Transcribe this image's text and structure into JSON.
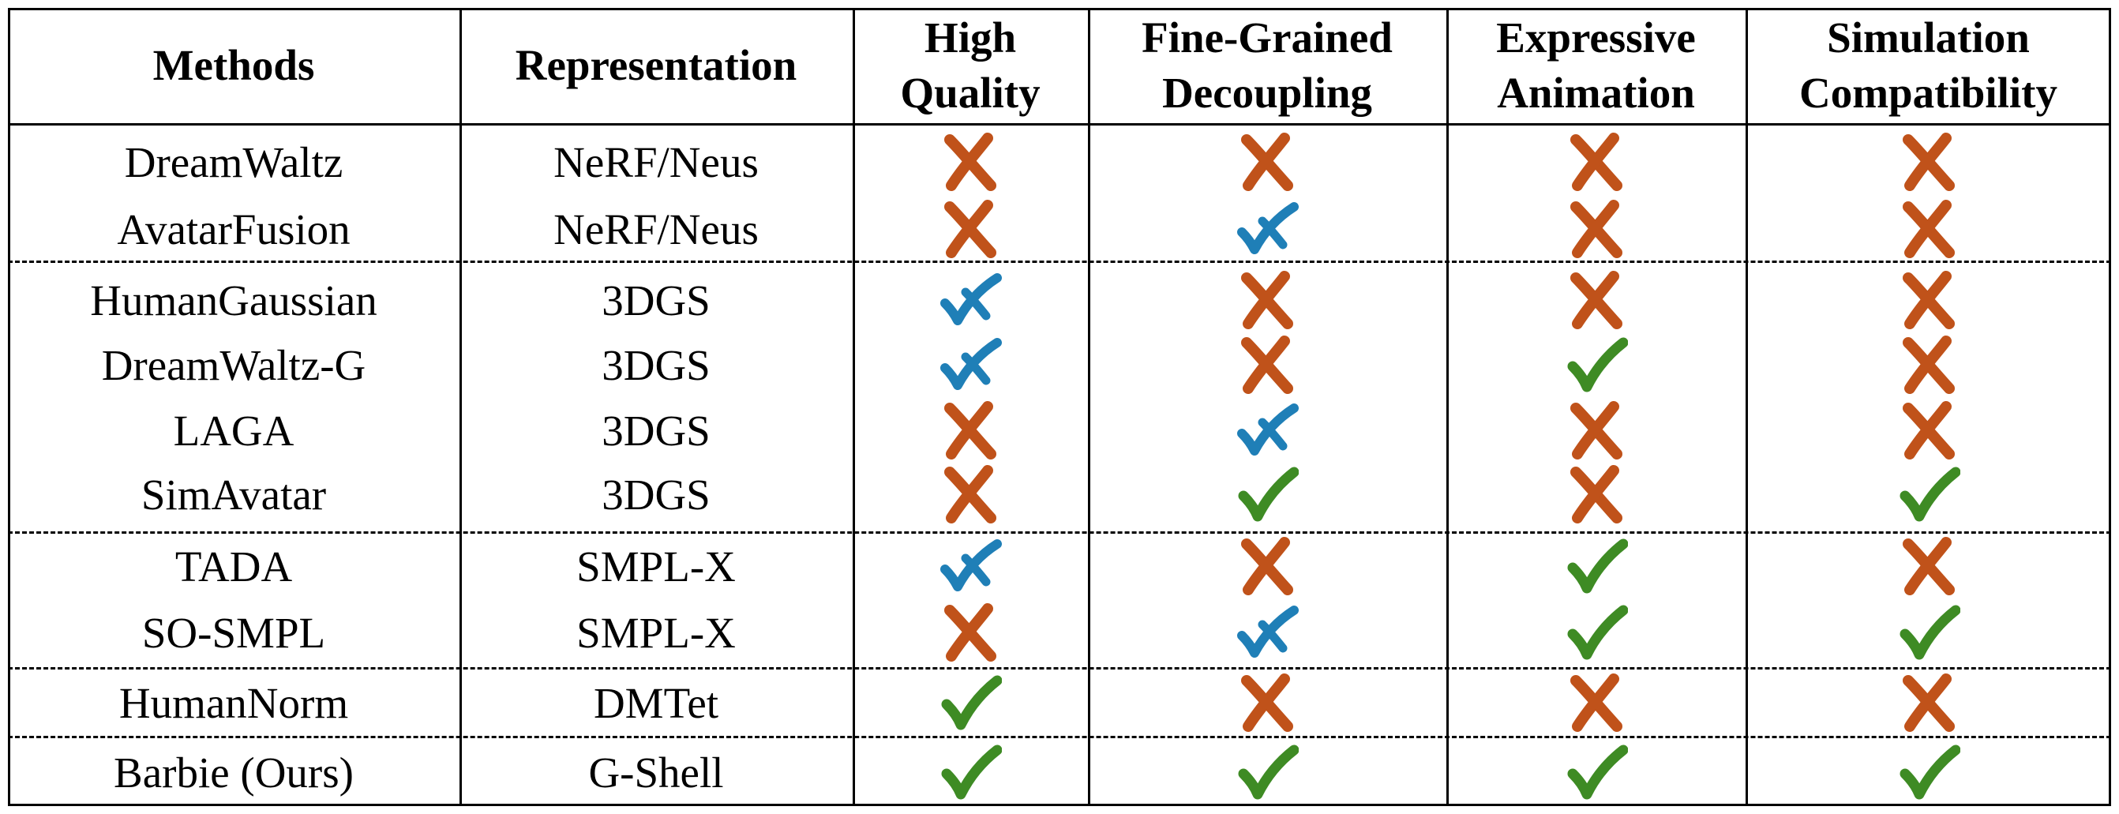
{
  "header": {
    "methods": "Methods",
    "representation": "Representation",
    "high_quality": "High Quality",
    "fine_grained": "Fine-Grained Decoupling",
    "expressive": "Expressive Animation",
    "simulation": "Simulation Compatibility"
  },
  "colors": {
    "cross": "#c0521a",
    "partial": "#1f7fb7",
    "check": "#3e8b24"
  },
  "marks_legend": {
    "cross": "cross-icon",
    "partial": "partial-check-icon",
    "check": "check-icon"
  },
  "rows": [
    {
      "method": "DreamWaltz",
      "representation": "NeRF/Neus",
      "marks": [
        "cross",
        "cross",
        "cross",
        "cross"
      ]
    },
    {
      "method": "AvatarFusion",
      "representation": "NeRF/Neus",
      "marks": [
        "cross",
        "partial",
        "cross",
        "cross"
      ]
    },
    {
      "method": "HumanGaussian",
      "representation": "3DGS",
      "marks": [
        "partial",
        "cross",
        "cross",
        "cross"
      ]
    },
    {
      "method": "DreamWaltz-G",
      "representation": "3DGS",
      "marks": [
        "partial",
        "cross",
        "check",
        "cross"
      ]
    },
    {
      "method": "LAGA",
      "representation": "3DGS",
      "marks": [
        "cross",
        "partial",
        "cross",
        "cross"
      ]
    },
    {
      "method": "SimAvatar",
      "representation": "3DGS",
      "marks": [
        "cross",
        "check",
        "cross",
        "check"
      ]
    },
    {
      "method": "TADA",
      "representation": "SMPL-X",
      "marks": [
        "partial",
        "cross",
        "check",
        "cross"
      ]
    },
    {
      "method": "SO-SMPL",
      "representation": "SMPL-X",
      "marks": [
        "cross",
        "partial",
        "check",
        "check"
      ]
    },
    {
      "method": "HumanNorm",
      "representation": "DMTet",
      "marks": [
        "check",
        "cross",
        "cross",
        "cross"
      ]
    },
    {
      "method": "Barbie (Ours)",
      "representation": "G-Shell",
      "marks": [
        "check",
        "check",
        "check",
        "check"
      ]
    }
  ]
}
